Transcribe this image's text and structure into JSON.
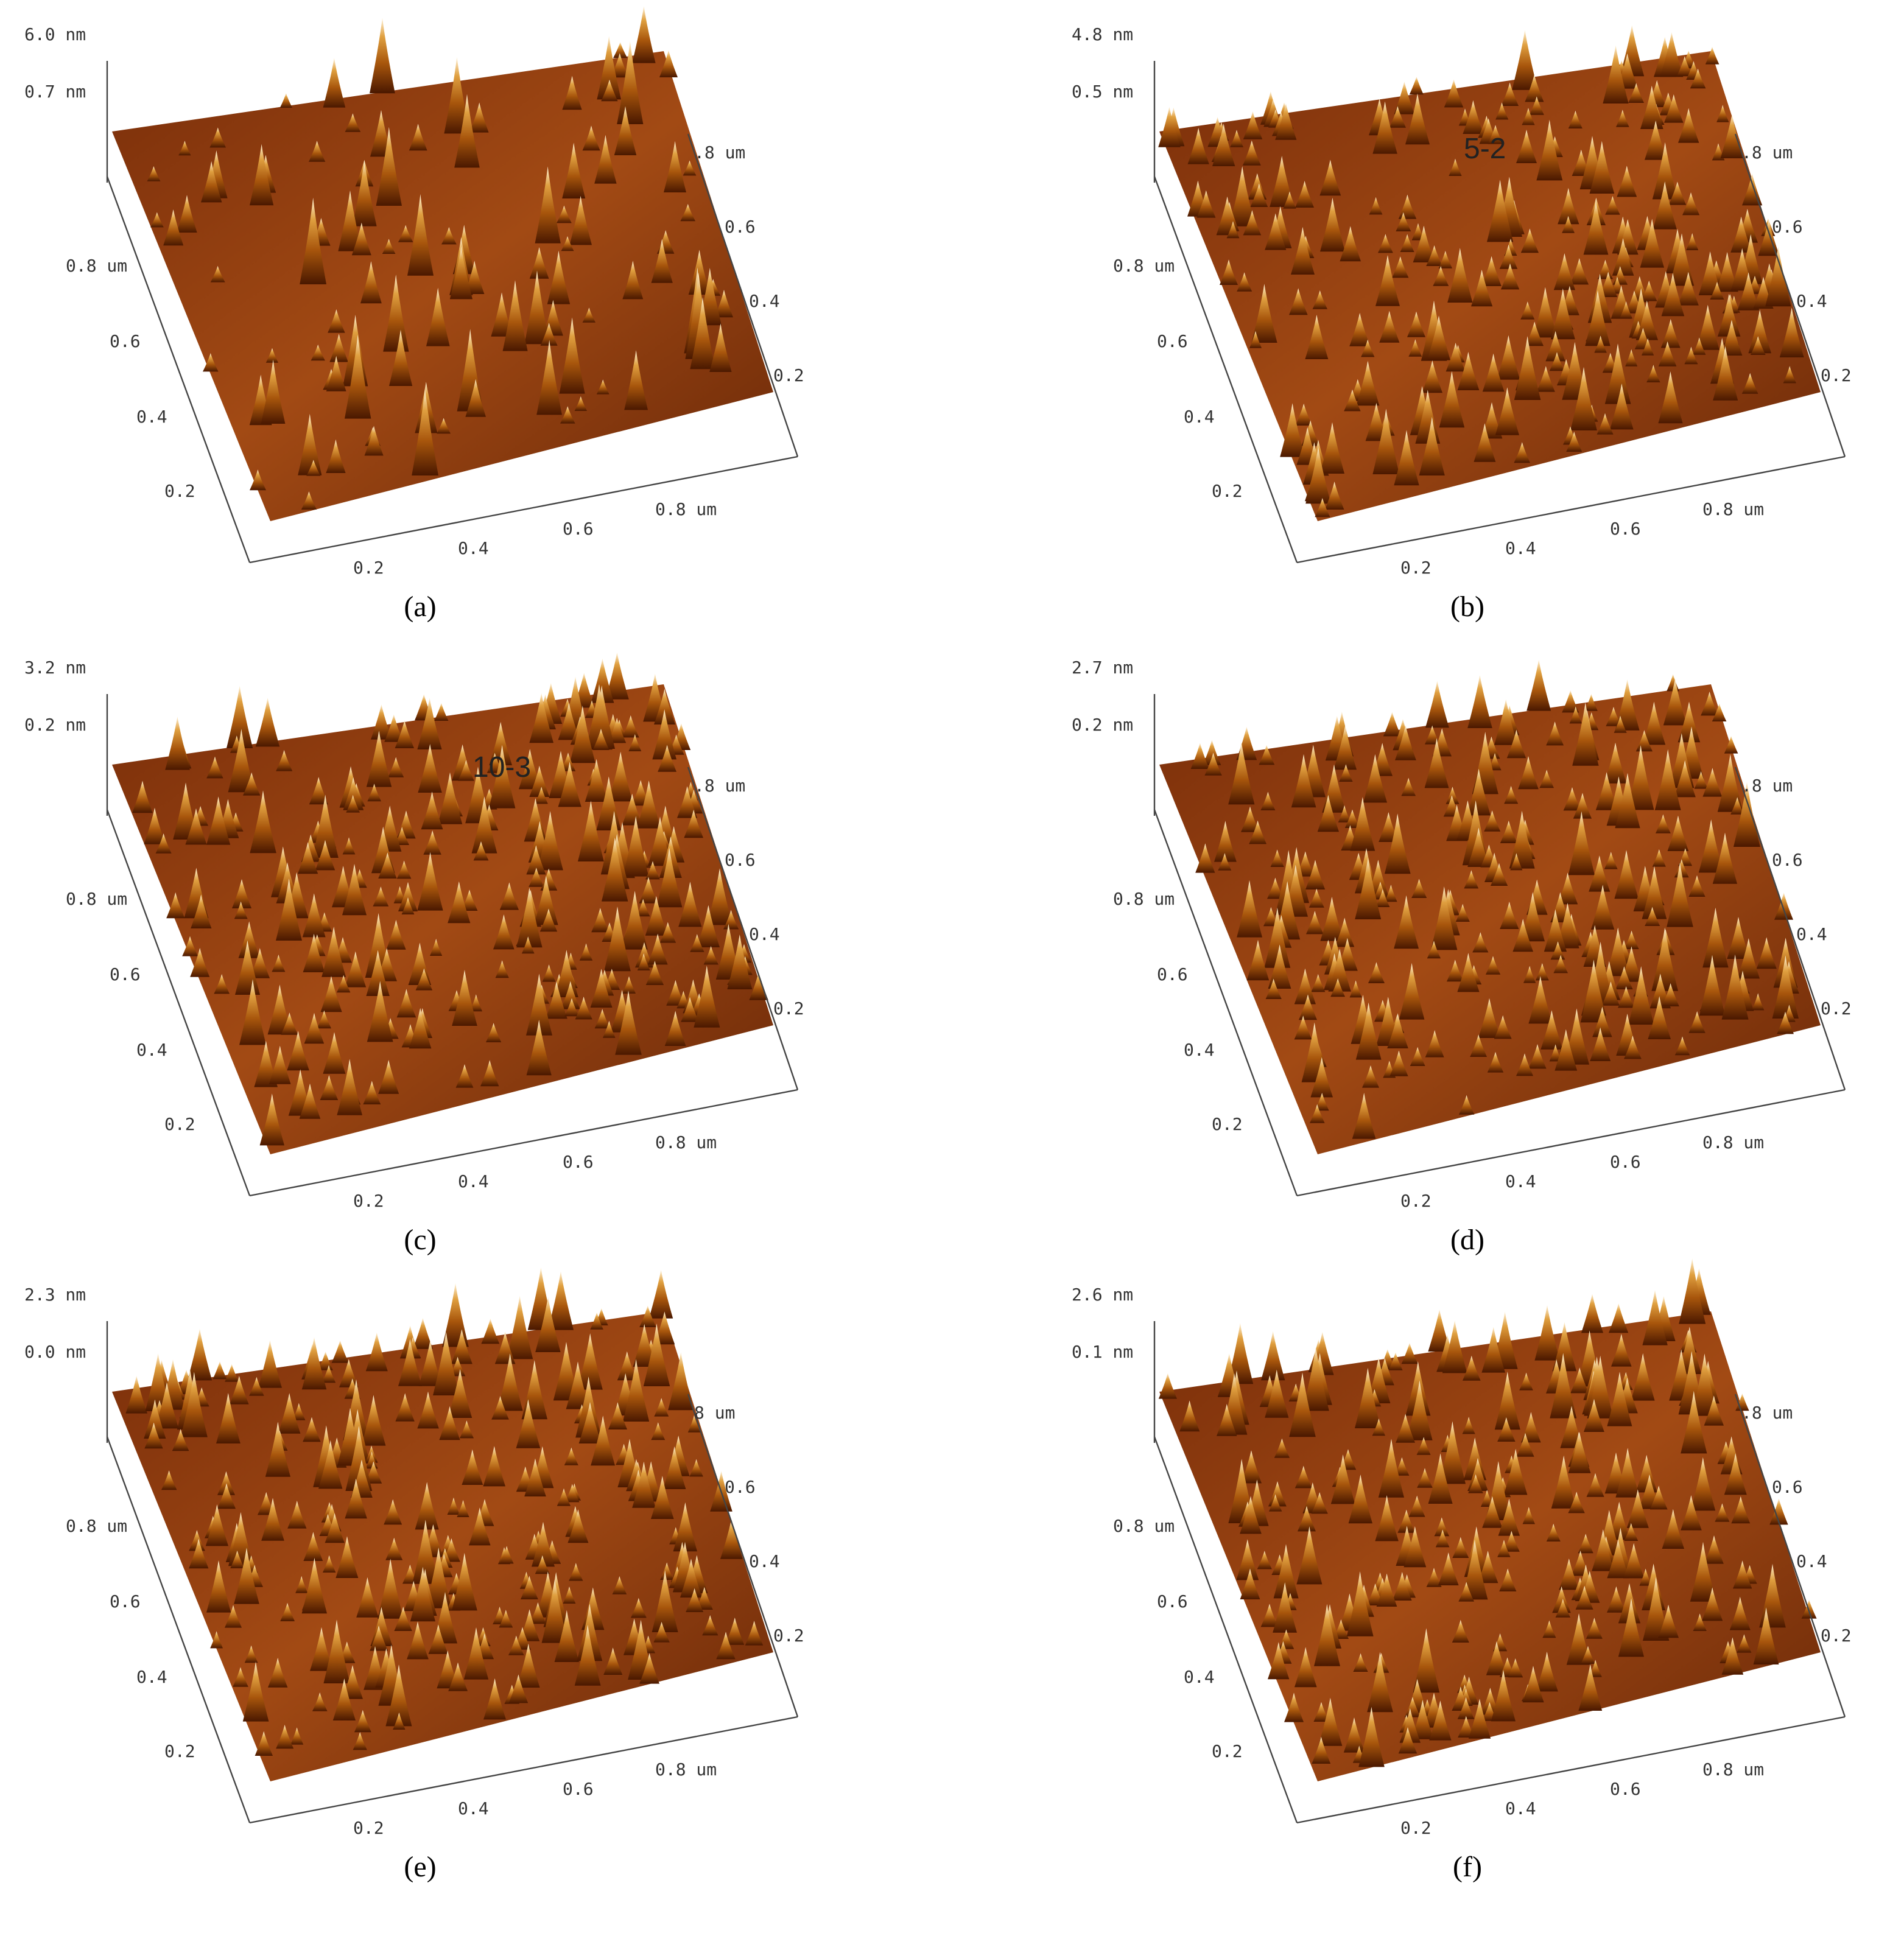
{
  "panels": [
    {
      "label": "(a)",
      "z_labels": [
        "6.0 nm",
        "0.7 nm"
      ],
      "right_labels": [
        ".8 um",
        "0.6",
        "0.4",
        "0.2"
      ],
      "left_labels": [
        "0.8 um",
        "0.6",
        "0.4",
        "0.2"
      ],
      "bottom_labels": [
        "0.2",
        "0.4",
        "0.6",
        "0.8 um"
      ]
    },
    {
      "label": "(b)",
      "z_labels": [
        "4.8 nm",
        "0.5 nm"
      ],
      "right_labels": [
        ".8 um",
        "0.6",
        "0.4",
        "0.2"
      ],
      "left_labels": [
        "0.8 um",
        "0.6",
        "0.4",
        "0.2"
      ],
      "bottom_labels": [
        "0.2",
        "0.4",
        "0.6",
        "0.8 um"
      ],
      "annotation": "5-2"
    },
    {
      "label": "(c)",
      "z_labels": [
        "3.2 nm",
        "0.2 nm"
      ],
      "right_labels": [
        ".8 um",
        "0.6",
        "0.4",
        "0.2"
      ],
      "left_labels": [
        "0.8 um",
        "0.6",
        "0.4",
        "0.2"
      ],
      "bottom_labels": [
        "0.2",
        "0.4",
        "0.6",
        "0.8 um"
      ],
      "annotation": "10-3"
    },
    {
      "label": "(d)",
      "z_labels": [
        "2.7 nm",
        "0.2 nm"
      ],
      "right_labels": [
        ".8 um",
        "0.6",
        "0.4",
        "0.2"
      ],
      "left_labels": [
        "0.8 um",
        "0.6",
        "0.4",
        "0.2"
      ],
      "bottom_labels": [
        "0.2",
        "0.4",
        "0.6",
        "0.8 um"
      ]
    },
    {
      "label": "(e)",
      "z_labels": [
        "2.3 nm",
        "0.0 nm"
      ],
      "right_labels": [
        "8 um",
        "0.6",
        "0.4",
        "0.2"
      ],
      "left_labels": [
        "0.8 um",
        "0.6",
        "0.4",
        "0.2"
      ],
      "bottom_labels": [
        "0.2",
        "0.4",
        "0.6",
        "0.8 um"
      ]
    },
    {
      "label": "(f)",
      "z_labels": [
        "2.6 nm",
        "0.1 nm"
      ],
      "right_labels": [
        ".8 um",
        "0.6",
        "0.4",
        "0.2"
      ],
      "left_labels": [
        "0.8 um",
        "0.6",
        "0.4",
        "0.2"
      ],
      "bottom_labels": [
        "0.2",
        "0.4",
        "0.6",
        "0.8 um"
      ]
    }
  ]
}
